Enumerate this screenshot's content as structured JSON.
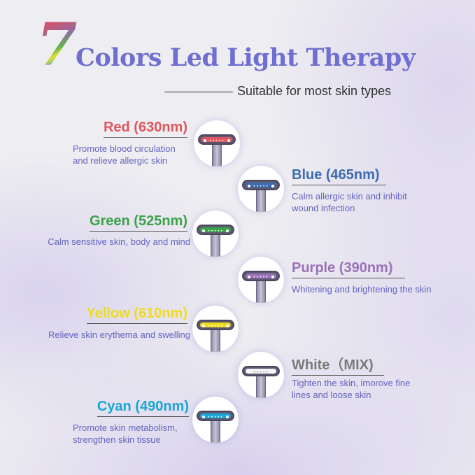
{
  "header": {
    "number": "7",
    "title": "Colors Led Light Therapy",
    "subtitle": "Suitable for most skin types"
  },
  "lights": [
    {
      "name": "Red (630nm)",
      "desc1": "Promote blood circulation",
      "desc2": "and relieve allergic skin",
      "color": "#e0575f"
    },
    {
      "name": "Blue (465nm)",
      "desc1": "Calm allergic skin and inhibit",
      "desc2": "wound infection",
      "color": "#3b6db0"
    },
    {
      "name": "Green (525nm)",
      "desc1": "Calm sensitive skin, body and mind",
      "color": "#3aa34a"
    },
    {
      "name": "Purple (390nm)",
      "desc1": "Whitening and brightening the skin",
      "color": "#9b72b8"
    },
    {
      "name": "Yellow (610nm)",
      "desc1": "Relieve skin erythema and swelling",
      "color": "#f0dc1c"
    },
    {
      "name": "White（MIX)",
      "desc1": "Tighten the skin, imorove fine",
      "desc2": "lines and loose skin",
      "color": "#7a7a7a"
    },
    {
      "name": "Cyan (490nm)",
      "desc1": "Promote skin metabolism,",
      "desc2": "strengthen skin tissue",
      "color": "#1aa6d6"
    }
  ]
}
